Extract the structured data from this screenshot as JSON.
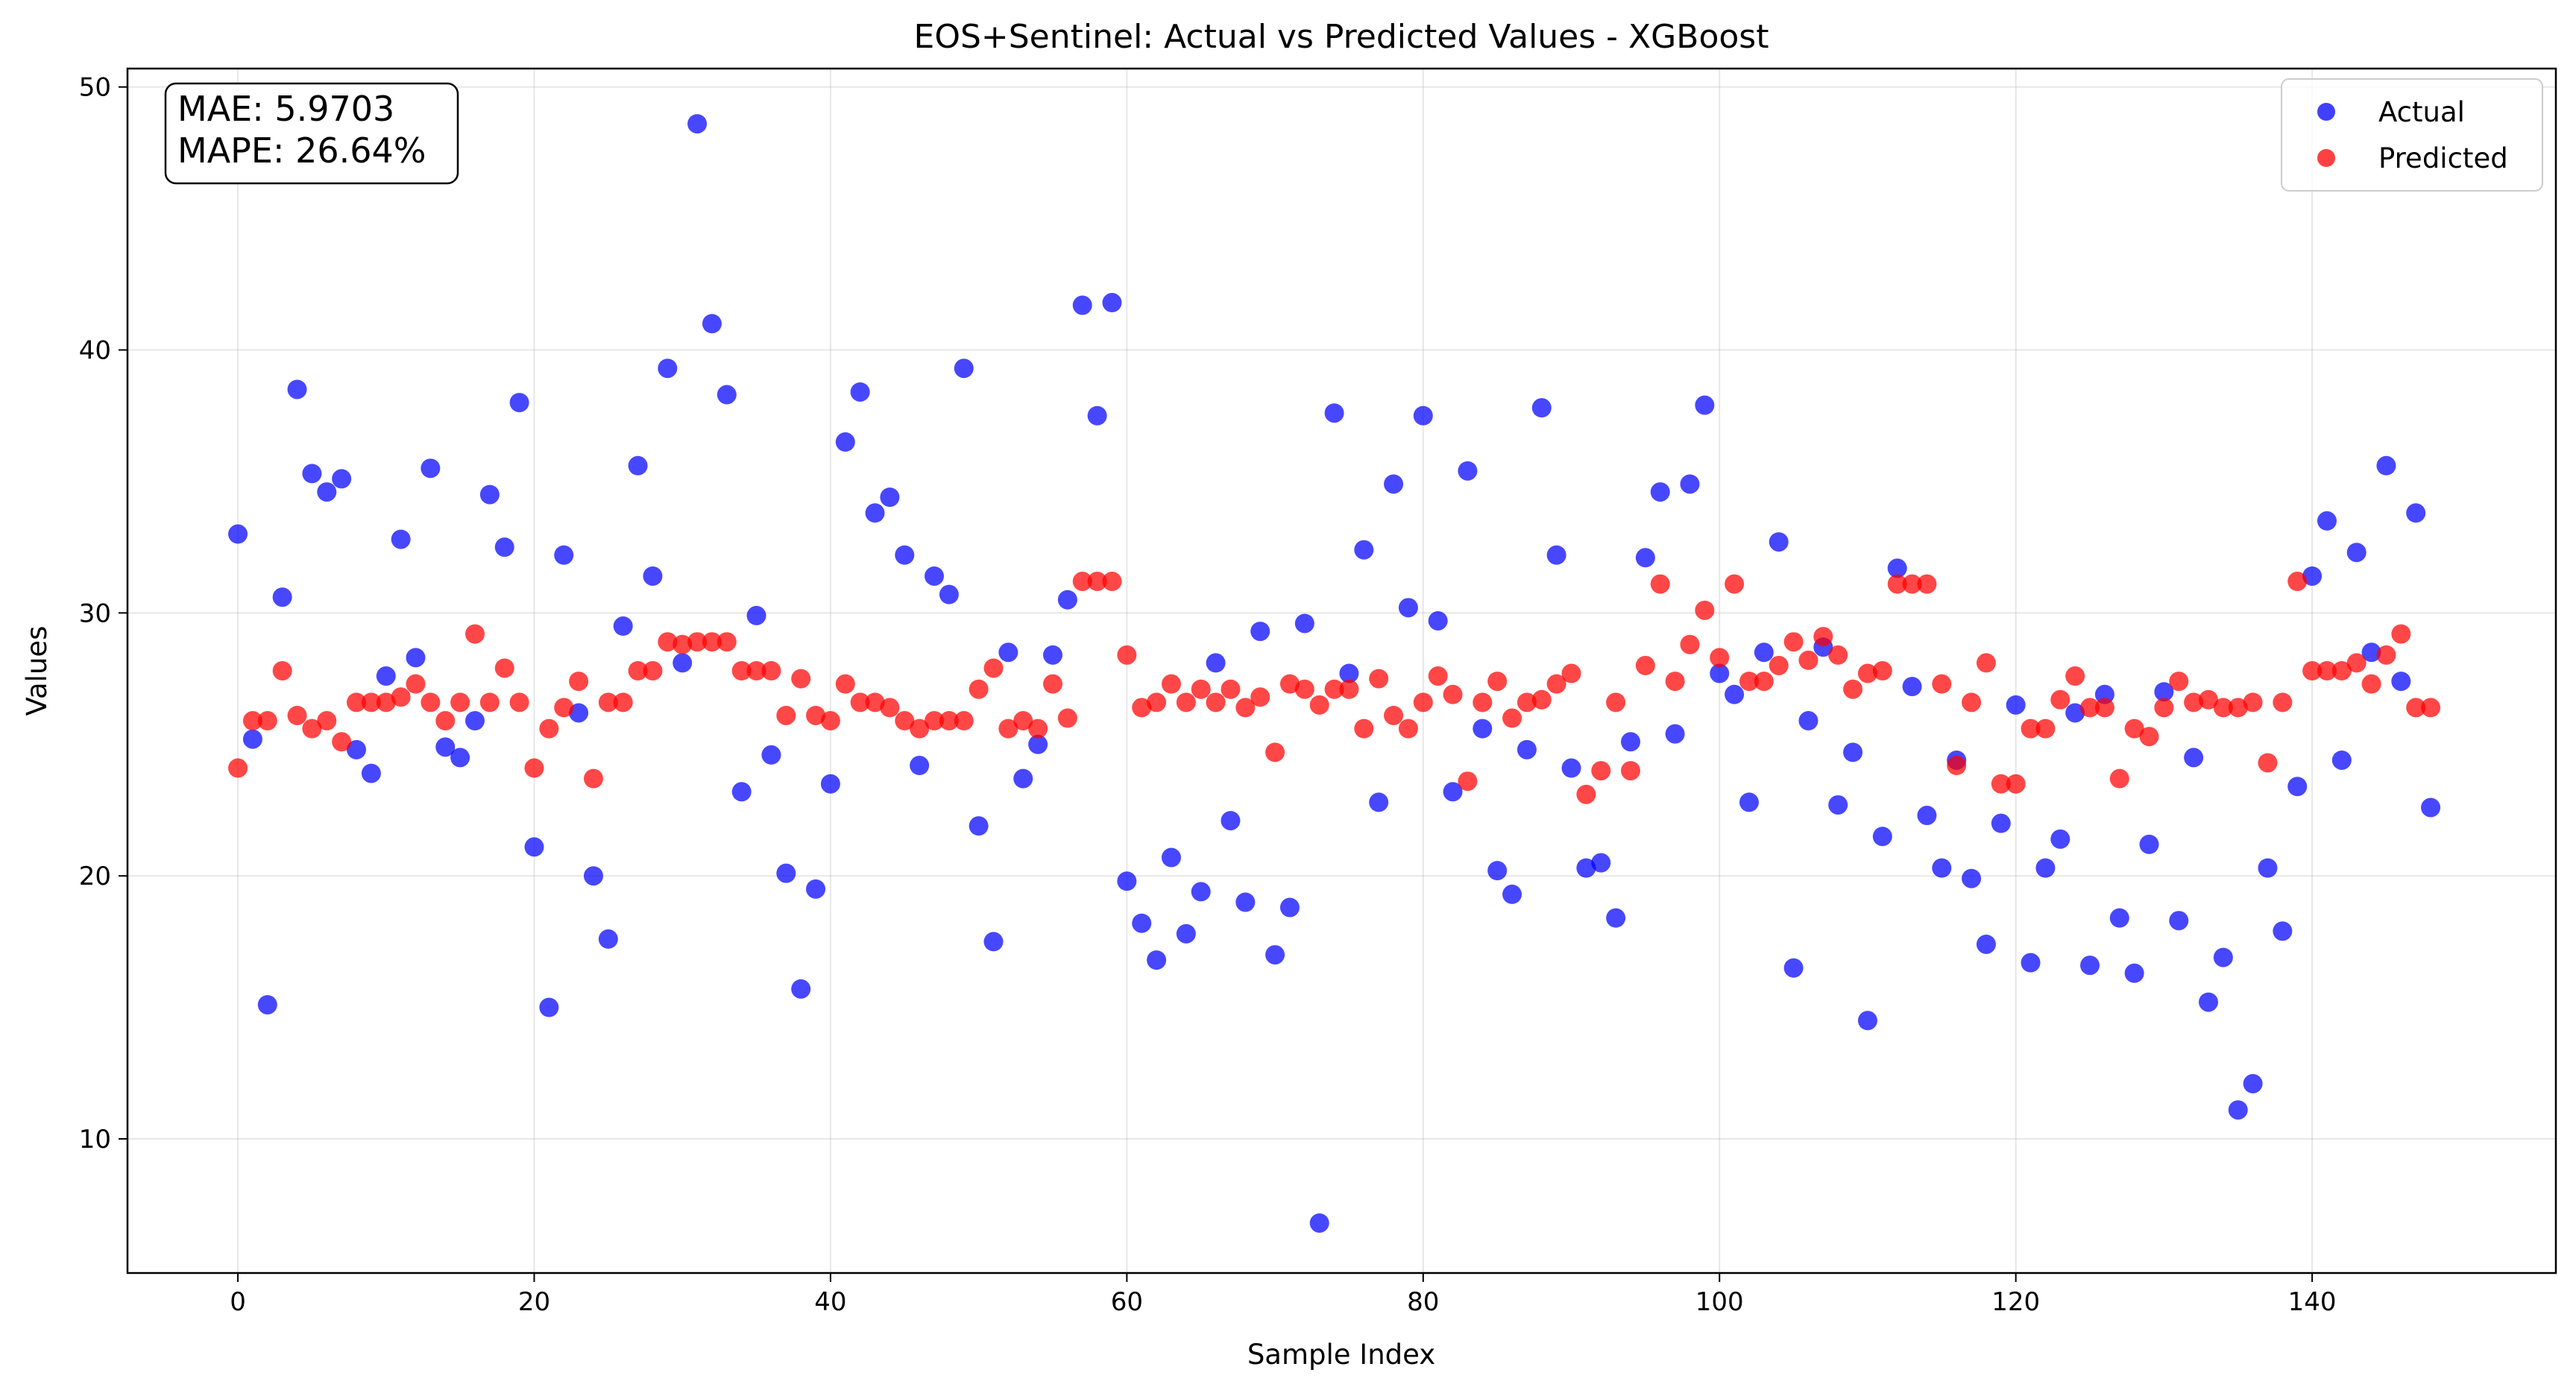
{
  "chart_data": {
    "type": "scatter",
    "title": "EOS+Sentinel: Actual vs Predicted Values - XGBoost",
    "xlabel": "Sample Index",
    "ylabel": "Values",
    "xlim": [
      -7.45,
      156.45
    ],
    "ylim": [
      4.9,
      50.7
    ],
    "xticks": [
      0,
      20,
      40,
      60,
      80,
      100,
      120,
      140
    ],
    "yticks": [
      10,
      20,
      30,
      40,
      50
    ],
    "grid": true,
    "legend_position": "top-right",
    "annotation": {
      "lines": [
        "MAE: 5.9703",
        "MAPE: 26.64%"
      ],
      "position": "top-left"
    },
    "series": [
      {
        "name": "Actual",
        "color": "#0000ff",
        "values": [
          33.0,
          25.2,
          15.1,
          30.6,
          38.5,
          35.3,
          34.6,
          35.1,
          24.8,
          23.9,
          27.6,
          32.8,
          28.3,
          35.5,
          24.9,
          24.5,
          25.9,
          34.5,
          32.5,
          38.0,
          21.1,
          15.0,
          32.2,
          26.2,
          20.0,
          17.6,
          29.5,
          35.6,
          31.4,
          39.3,
          28.1,
          48.6,
          41.0,
          38.3,
          23.2,
          29.9,
          24.6,
          20.1,
          15.7,
          19.5,
          23.5,
          36.5,
          38.4,
          33.8,
          34.4,
          32.2,
          24.2,
          31.4,
          30.7,
          39.3,
          21.9,
          17.5,
          28.5,
          23.7,
          25.0,
          28.4,
          30.5,
          41.7,
          37.5,
          41.8,
          19.8,
          18.2,
          16.8,
          20.7,
          17.8,
          19.4,
          28.1,
          22.1,
          19.0,
          29.3,
          17.0,
          18.8,
          29.6,
          6.8,
          37.6,
          27.7,
          32.4,
          22.8,
          34.9,
          30.2,
          37.5,
          29.7,
          23.2,
          35.4,
          25.6,
          20.2,
          19.3,
          24.8,
          37.8,
          32.2,
          24.1,
          20.3,
          20.5,
          18.4,
          25.1,
          32.1,
          34.6,
          25.4,
          34.9,
          37.9,
          27.7,
          26.9,
          22.8,
          28.5,
          32.7,
          16.5,
          25.9,
          28.7,
          22.7,
          24.7,
          14.5,
          21.5,
          31.7,
          27.2,
          22.3,
          20.3,
          24.4,
          19.9,
          17.4,
          22.0,
          26.5,
          16.7,
          20.3,
          21.4,
          26.2,
          16.6,
          26.9,
          18.4,
          16.3,
          21.2,
          27.0,
          18.3,
          24.5,
          15.2,
          16.9,
          11.1,
          12.1,
          20.3,
          17.9,
          23.4,
          31.4,
          33.5,
          24.4,
          32.3,
          28.5,
          35.6,
          27.4,
          33.8,
          22.6
        ]
      },
      {
        "name": "Predicted",
        "color": "#ff0000",
        "values": [
          24.1,
          25.9,
          25.9,
          27.8,
          26.1,
          25.6,
          25.9,
          25.1,
          26.6,
          26.6,
          26.6,
          26.8,
          27.3,
          26.6,
          25.9,
          26.6,
          29.2,
          26.6,
          27.9,
          26.6,
          24.1,
          25.6,
          26.4,
          27.4,
          23.7,
          26.6,
          26.6,
          27.8,
          27.8,
          28.9,
          28.8,
          28.9,
          28.9,
          28.9,
          27.8,
          27.8,
          27.8,
          26.1,
          27.5,
          26.1,
          25.9,
          27.3,
          26.6,
          26.6,
          26.4,
          25.9,
          25.6,
          25.9,
          25.9,
          25.9,
          27.1,
          27.9,
          25.6,
          25.9,
          25.6,
          27.3,
          26.0,
          31.2,
          31.2,
          31.2,
          28.4,
          26.4,
          26.6,
          27.3,
          26.6,
          27.1,
          26.6,
          27.1,
          26.4,
          26.8,
          24.7,
          27.3,
          27.1,
          26.5,
          27.1,
          27.1,
          25.6,
          27.5,
          26.1,
          25.6,
          26.6,
          27.6,
          26.9,
          23.6,
          26.6,
          27.4,
          26.0,
          26.6,
          26.7,
          27.3,
          27.7,
          23.1,
          24.0,
          26.6,
          24.0,
          28.0,
          31.1,
          27.4,
          28.8,
          30.1,
          28.3,
          31.1,
          27.4,
          27.4,
          28.0,
          28.9,
          28.2,
          29.1,
          28.4,
          27.1,
          27.7,
          27.8,
          31.1,
          31.1,
          31.1,
          27.3,
          24.2,
          26.6,
          28.1,
          23.5,
          23.5,
          25.6,
          25.6,
          26.7,
          27.6,
          26.4,
          26.4,
          23.7,
          25.6,
          25.3,
          26.4,
          27.4,
          26.6,
          26.7,
          26.4,
          26.4,
          26.6,
          24.3,
          26.6,
          31.2,
          27.8,
          27.8,
          27.8,
          28.1,
          27.3,
          28.4,
          29.2,
          26.4,
          26.4
        ]
      }
    ]
  }
}
